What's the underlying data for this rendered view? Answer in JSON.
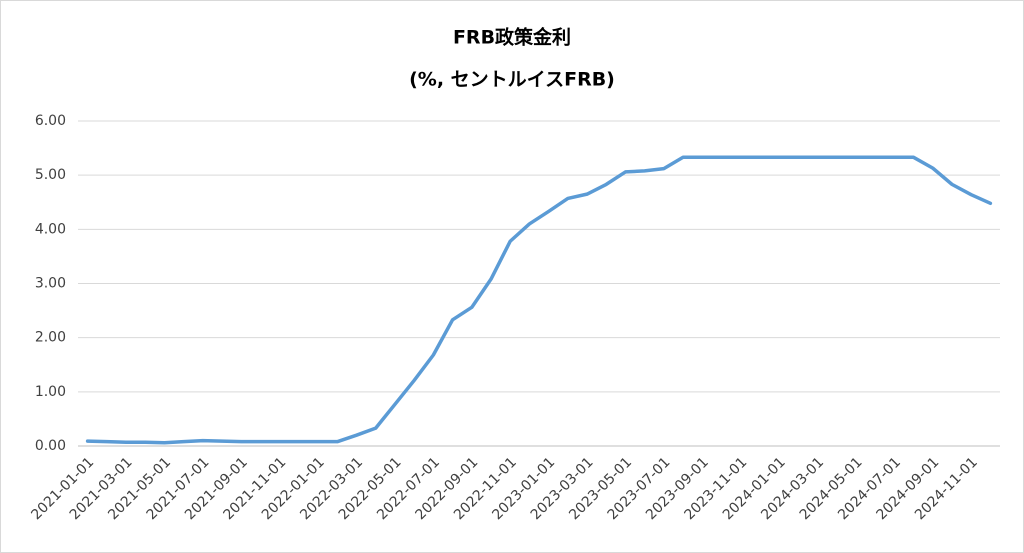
{
  "chart_data": {
    "type": "line",
    "title": "FRB政策金利",
    "subtitle": "(%, セントルイスFRB)",
    "categories": [
      "2021-01-01",
      null,
      "2021-03-01",
      null,
      "2021-05-01",
      null,
      "2021-07-01",
      null,
      "2021-09-01",
      null,
      "2021-11-01",
      null,
      "2022-01-01",
      null,
      "2022-03-01",
      null,
      "2022-05-01",
      null,
      "2022-07-01",
      null,
      "2022-09-01",
      null,
      "2022-11-01",
      null,
      "2023-01-01",
      null,
      "2023-03-01",
      null,
      "2023-05-01",
      null,
      "2023-07-01",
      null,
      "2023-09-01",
      null,
      "2023-11-01",
      null,
      "2024-01-01",
      null,
      "2024-03-01",
      null,
      "2024-05-01",
      null,
      "2024-07-01",
      null,
      "2024-09-01",
      null,
      "2024-11-01",
      null
    ],
    "series": [
      {
        "color": "#5b9bd5",
        "values": [
          0.09,
          0.08,
          0.07,
          0.07,
          0.06,
          0.08,
          0.1,
          0.09,
          0.08,
          0.08,
          0.08,
          0.08,
          0.08,
          0.08,
          0.2,
          0.33,
          0.77,
          1.21,
          1.68,
          2.33,
          2.56,
          3.08,
          3.78,
          4.1,
          4.33,
          4.57,
          4.65,
          4.83,
          5.06,
          5.08,
          5.12,
          5.33,
          5.33,
          5.33,
          5.33,
          5.33,
          5.33,
          5.33,
          5.33,
          5.33,
          5.33,
          5.33,
          5.33,
          5.33,
          5.13,
          4.83,
          4.64,
          4.48
        ]
      }
    ],
    "ylim": [
      0,
      6
    ],
    "yticks": [
      {
        "value": 0,
        "label": "0.00"
      },
      {
        "value": 1,
        "label": "1.00"
      },
      {
        "value": 2,
        "label": "2.00"
      },
      {
        "value": 3,
        "label": "3.00"
      },
      {
        "value": 4,
        "label": "4.00"
      },
      {
        "value": 5,
        "label": "5.00"
      },
      {
        "value": 6,
        "label": "6.00"
      }
    ],
    "grid": true
  }
}
